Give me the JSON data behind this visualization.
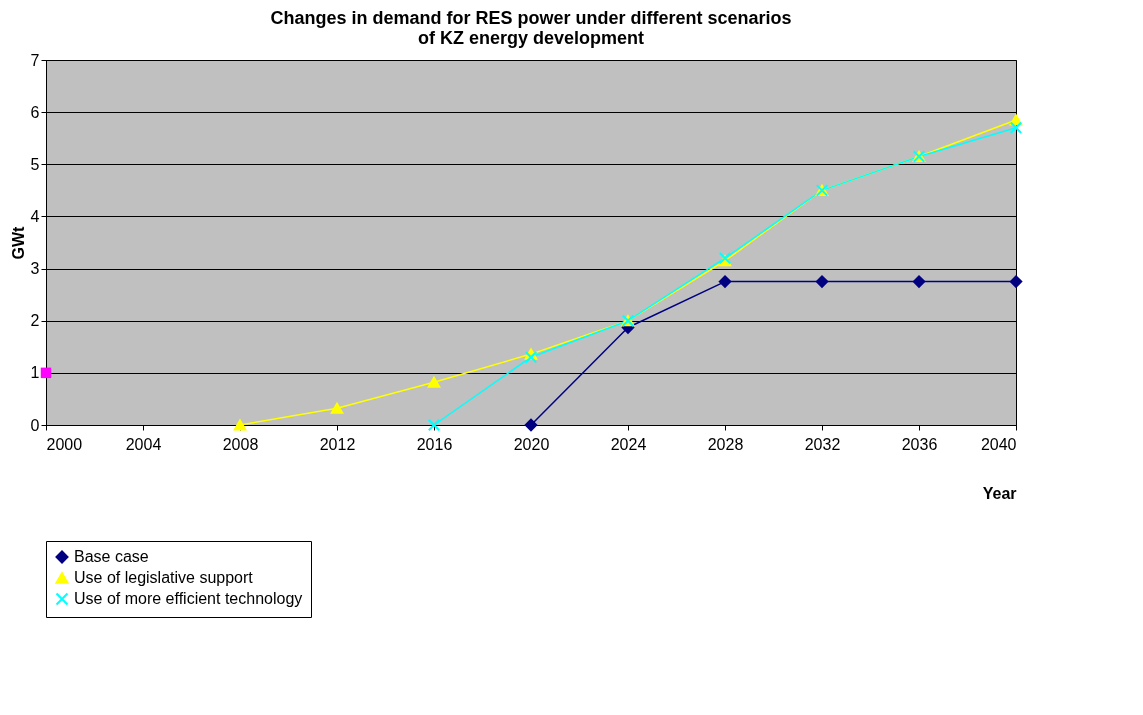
{
  "chart_data": {
    "type": "line",
    "title": [
      "Changes in demand for RES power  under different scenarios",
      "of KZ energy development"
    ],
    "xlabel": "Year",
    "ylabel": "GWt",
    "xlim": [
      2000,
      2040
    ],
    "xticks": [
      2000,
      2004,
      2008,
      2012,
      2016,
      2020,
      2024,
      2028,
      2032,
      2036,
      2040
    ],
    "ylim": [
      0,
      7
    ],
    "yticks": [
      {
        "value": 0,
        "label": "0"
      },
      {
        "value": 1,
        "label": "1"
      },
      {
        "value": 2,
        "label": "2"
      },
      {
        "value": 3,
        "label": "3"
      },
      {
        "value": 4,
        "label": "4"
      },
      {
        "value": 5,
        "label": "5"
      },
      {
        "value": 6,
        "label": "6"
      },
      {
        "value": 7,
        "label": "7"
      }
    ],
    "grid": "y",
    "legend": "bottom",
    "series": [
      {
        "name": "Base case",
        "color": "#000080",
        "marker": "diamond",
        "x": [
          2020,
          2024,
          2028,
          2032,
          2036,
          2040
        ],
        "values": [
          0,
          1.87,
          2.75,
          2.75,
          2.75,
          2.75
        ]
      },
      {
        "name": "Use of legislative support",
        "color": "#ffff00",
        "marker": "triangle",
        "x": [
          2008,
          2012,
          2016,
          2020,
          2024,
          2028,
          2032,
          2036,
          2040
        ],
        "values": [
          0,
          0.32,
          0.82,
          1.36,
          2.0,
          3.15,
          4.5,
          5.15,
          5.85
        ]
      },
      {
        "name": "Use of more efficient technology",
        "color": "#00ffff",
        "marker": "cross",
        "x": [
          2016,
          2020,
          2024,
          2028,
          2032,
          2036,
          2040
        ],
        "values": [
          0,
          1.3,
          2.0,
          3.2,
          4.5,
          5.15,
          5.7
        ]
      },
      {
        "type": "scatter",
        "color": "#ff00ff",
        "marker": "square",
        "x": [
          2000
        ],
        "values": [
          1
        ]
      }
    ]
  }
}
